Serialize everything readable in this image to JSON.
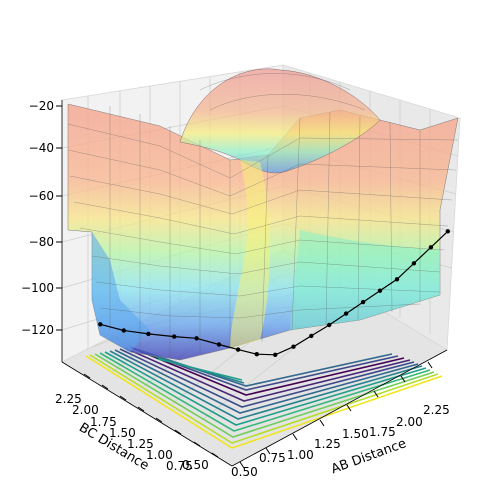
{
  "chart_data": {
    "type": "surface3d",
    "title": "",
    "xlabel": "AB Distance",
    "ylabel": "BC Distance",
    "zlabel": "",
    "x_ticks": [
      "0.50",
      "0.75",
      "1.00",
      "1.25",
      "1.50",
      "1.75",
      "2.00",
      "2.25"
    ],
    "y_ticks": [
      "0.50",
      "0.75",
      "1.00",
      "1.25",
      "1.50",
      "1.75",
      "2.00",
      "2.25"
    ],
    "z_ticks": [
      "−120",
      "−100",
      "−80",
      "−60",
      "−40",
      "−20"
    ],
    "xlim": [
      0.5,
      2.4
    ],
    "ylim": [
      0.5,
      2.4
    ],
    "zlim": [
      -135,
      -20
    ],
    "surface_colormap": "jet",
    "contour_colormap": "viridis",
    "grid": true,
    "trajectory": {
      "marker_color": "#000000",
      "points": [
        {
          "x": 2.6,
          "y": 0.74,
          "z": -94
        },
        {
          "x": 2.45,
          "y": 0.74,
          "z": -97
        },
        {
          "x": 2.3,
          "y": 0.74,
          "z": -100
        },
        {
          "x": 2.15,
          "y": 0.74,
          "z": -103
        },
        {
          "x": 2.0,
          "y": 0.74,
          "z": -104
        },
        {
          "x": 1.85,
          "y": 0.74,
          "z": -105
        },
        {
          "x": 1.7,
          "y": 0.74,
          "z": -106
        },
        {
          "x": 1.55,
          "y": 0.74,
          "z": -107
        },
        {
          "x": 1.4,
          "y": 0.75,
          "z": -108
        },
        {
          "x": 1.25,
          "y": 0.76,
          "z": -109
        },
        {
          "x": 1.12,
          "y": 0.8,
          "z": -110
        },
        {
          "x": 1.02,
          "y": 0.88,
          "z": -109
        },
        {
          "x": 0.95,
          "y": 1.0,
          "z": -108
        },
        {
          "x": 0.9,
          "y": 1.15,
          "z": -108
        },
        {
          "x": 0.86,
          "y": 1.35,
          "z": -109
        },
        {
          "x": 0.82,
          "y": 1.55,
          "z": -112
        },
        {
          "x": 0.79,
          "y": 1.8,
          "z": -116
        },
        {
          "x": 0.77,
          "y": 2.05,
          "z": -120
        },
        {
          "x": 0.76,
          "y": 2.3,
          "z": -123
        }
      ]
    }
  }
}
